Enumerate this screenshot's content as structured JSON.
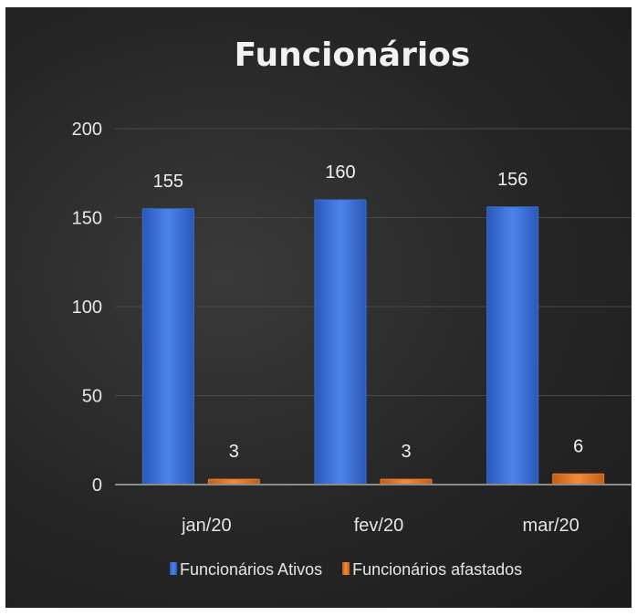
{
  "chart_data": {
    "type": "bar",
    "title": "Funcionários",
    "xlabel": "",
    "ylabel": "",
    "categories": [
      "jan/20",
      "fev/20",
      "mar/20"
    ],
    "series": [
      {
        "name": "Funcionários Ativos",
        "values": [
          155,
          160,
          156
        ],
        "color": "#3a6fd6"
      },
      {
        "name": "Funcionários afastados",
        "values": [
          3,
          3,
          6
        ],
        "color": "#e8792a"
      }
    ],
    "ylim": [
      0,
      200
    ],
    "yticks": [
      0,
      50,
      100,
      150,
      200
    ],
    "grid": true,
    "legend_position": "bottom",
    "data_labels": true,
    "background_color": "#262626"
  }
}
